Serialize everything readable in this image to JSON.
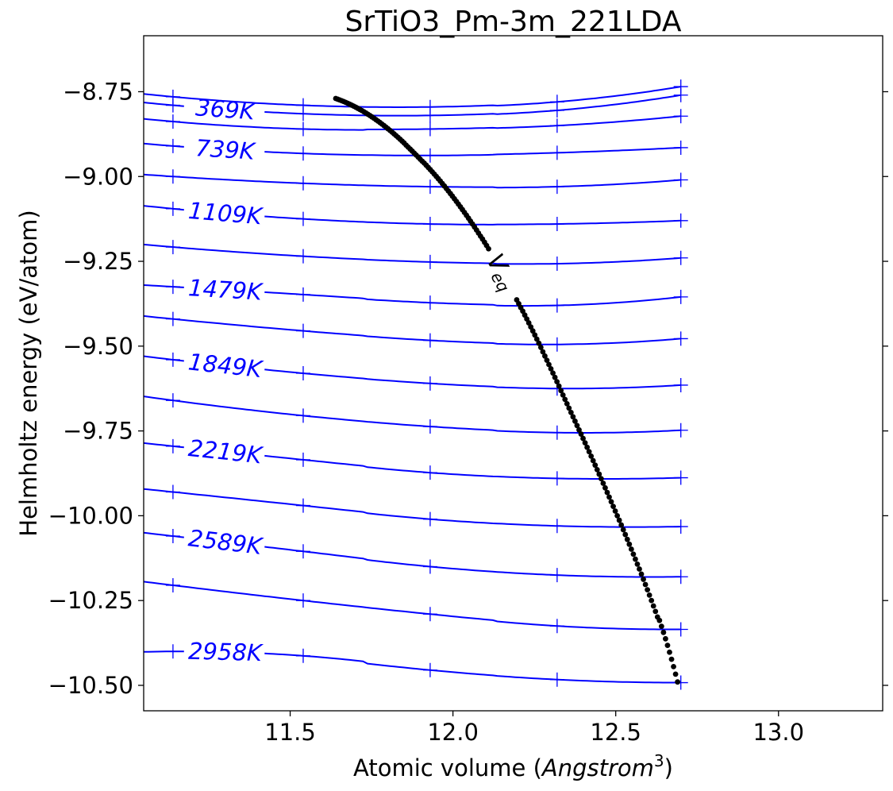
{
  "chart_data": {
    "type": "line",
    "title": "SrTiO3_Pm-3m_221LDA",
    "xlabel_prefix": "Atomic volume (",
    "xlabel_italic": "Angstrom",
    "xlabel_sup": "3",
    "xlabel_suffix": ")",
    "ylabel": "Helmholtz energy (eV/atom)",
    "xlim": [
      11.05,
      13.32
    ],
    "ylim": [
      -10.575,
      -8.585
    ],
    "xticks": [
      11.5,
      12.0,
      12.5,
      13.0
    ],
    "xtick_labels": [
      "11.5",
      "12.0",
      "12.5",
      "13.0"
    ],
    "yticks": [
      -8.75,
      -9.0,
      -9.25,
      -9.5,
      -9.75,
      -10.0,
      -10.25,
      -10.5
    ],
    "ytick_labels": [
      "−8.75",
      "−9.00",
      "−9.25",
      "−9.50",
      "−9.75",
      "−10.00",
      "−10.25",
      "−10.50"
    ],
    "grid": false,
    "series_color": "#0000ff",
    "veq_color": "#000000",
    "marker_volumes": [
      11.14,
      11.54,
      11.93,
      12.32,
      12.7
    ],
    "curve_x_range": [
      11.05,
      12.7
    ],
    "isotherms": [
      {
        "y": [
          -8.765,
          -8.79,
          -8.795,
          -8.78,
          -8.735
        ]
      },
      {
        "label": "369K",
        "y": [
          -8.79,
          -8.815,
          -8.82,
          -8.805,
          -8.76
        ]
      },
      {
        "y": [
          -8.838,
          -8.86,
          -8.86,
          -8.85,
          -8.822
        ]
      },
      {
        "label": "739K",
        "y": [
          -8.91,
          -8.932,
          -8.938,
          -8.93,
          -8.915
        ]
      },
      {
        "y": [
          -9.0,
          -9.02,
          -9.03,
          -9.03,
          -9.01
        ]
      },
      {
        "label": "1109K",
        "y": [
          -9.095,
          -9.125,
          -9.14,
          -9.14,
          -9.13
        ]
      },
      {
        "y": [
          -9.208,
          -9.235,
          -9.252,
          -9.257,
          -9.24
        ]
      },
      {
        "label": "1479K",
        "y": [
          -9.325,
          -9.348,
          -9.372,
          -9.38,
          -9.355
        ]
      },
      {
        "y": [
          -9.42,
          -9.455,
          -9.483,
          -9.495,
          -9.478
        ]
      },
      {
        "label": "1849K",
        "y": [
          -9.54,
          -9.58,
          -9.61,
          -9.625,
          -9.615
        ]
      },
      {
        "y": [
          -9.66,
          -9.705,
          -9.737,
          -9.755,
          -9.748
        ]
      },
      {
        "label": "2219K",
        "y": [
          -9.795,
          -9.835,
          -9.873,
          -9.89,
          -9.888
        ]
      },
      {
        "y": [
          -9.93,
          -9.97,
          -10.01,
          -10.03,
          -10.032
        ]
      },
      {
        "label": "2589K",
        "y": [
          -10.06,
          -10.105,
          -10.15,
          -10.175,
          -10.18
        ]
      },
      {
        "y": [
          -10.205,
          -10.25,
          -10.29,
          -10.325,
          -10.335
        ]
      },
      {
        "label": "2958K",
        "y": [
          -10.4,
          -10.413,
          -10.455,
          -10.483,
          -10.492
        ]
      }
    ],
    "veq_label": "V",
    "veq_subscript": "eq",
    "veq_curve": {
      "x": [
        11.64,
        11.7,
        11.76,
        11.82,
        11.88,
        11.94,
        12.0,
        12.06,
        12.12,
        12.18,
        12.24,
        12.3,
        12.36,
        12.42,
        12.48,
        12.54,
        12.6,
        12.66,
        12.69
      ],
      "y": [
        -8.77,
        -8.795,
        -8.83,
        -8.875,
        -8.93,
        -8.99,
        -9.06,
        -9.14,
        -9.23,
        -9.335,
        -9.445,
        -9.565,
        -9.69,
        -9.815,
        -9.945,
        -10.08,
        -10.225,
        -10.385,
        -10.49
      ]
    },
    "veq_gap": [
      12.11,
      12.19
    ]
  }
}
